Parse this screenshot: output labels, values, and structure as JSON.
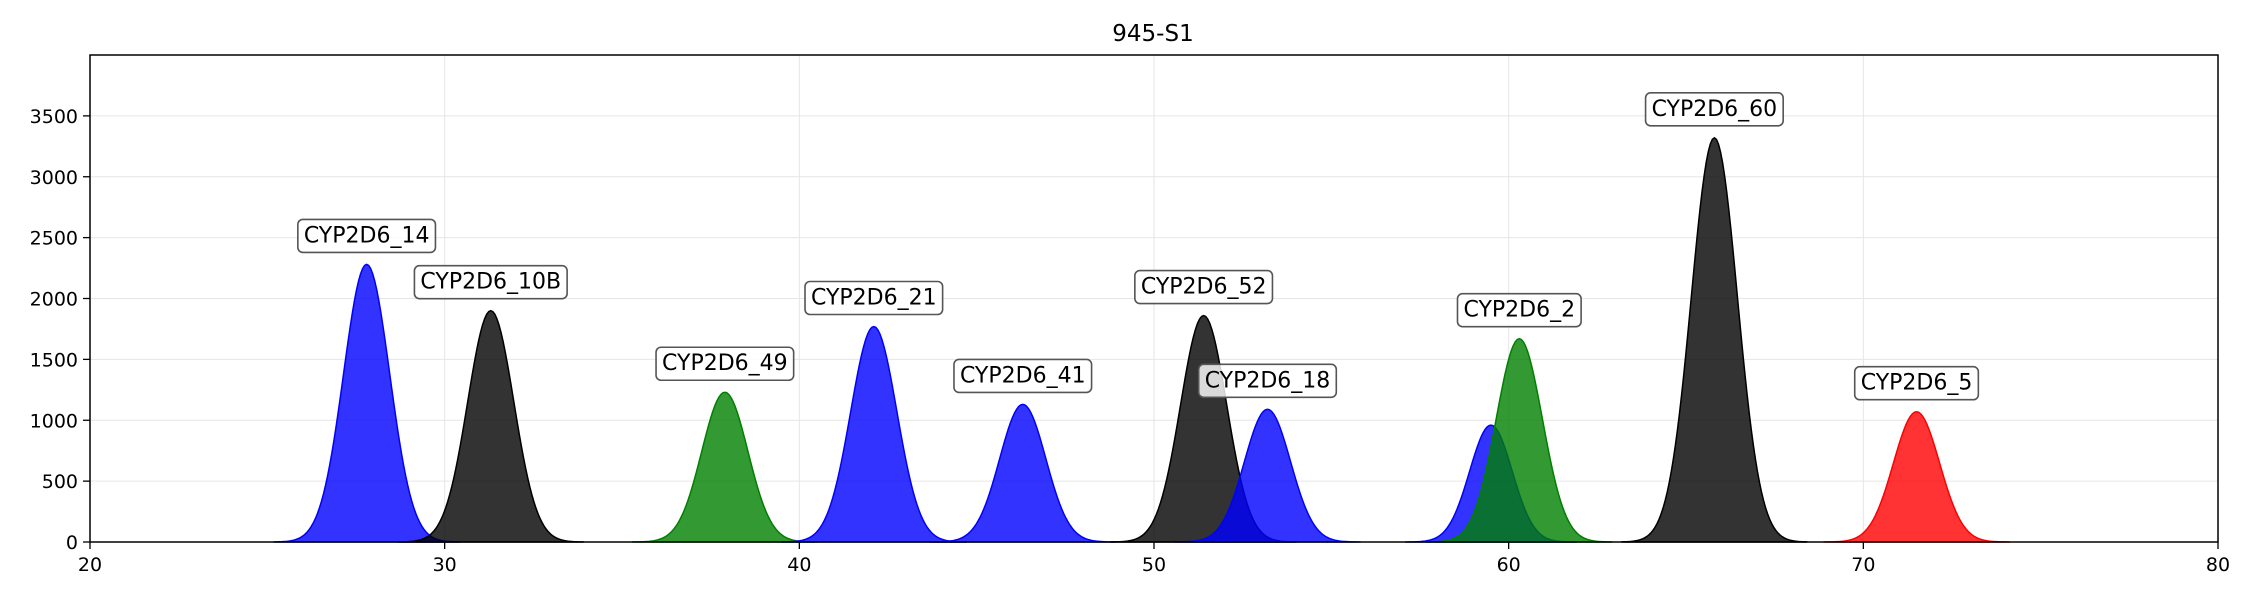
{
  "chart_data": {
    "type": "area",
    "title": "945-S1",
    "xlabel": "",
    "ylabel": "",
    "xlim": [
      20,
      80
    ],
    "ylim": [
      0,
      4000
    ],
    "xticks": [
      20,
      30,
      40,
      50,
      60,
      70,
      80
    ],
    "yticks": [
      0,
      500,
      1000,
      1500,
      2000,
      2500,
      3000,
      3500
    ],
    "grid": true,
    "colors": {
      "blue": "#0000ff",
      "black": "#000000",
      "green": "#008000",
      "red": "#ff0000"
    },
    "series": [
      {
        "label": "CYP2D6_14",
        "center": 27.8,
        "height": 2280,
        "sigma": 0.65,
        "color": "blue",
        "show_label": true
      },
      {
        "label": "CYP2D6_10B",
        "center": 31.3,
        "height": 1900,
        "sigma": 0.65,
        "color": "black",
        "show_label": true
      },
      {
        "label": "CYP2D6_49",
        "center": 37.9,
        "height": 1230,
        "sigma": 0.65,
        "color": "green",
        "show_label": true
      },
      {
        "label": "CYP2D6_21",
        "center": 42.1,
        "height": 1770,
        "sigma": 0.65,
        "color": "blue",
        "show_label": true
      },
      {
        "label": "CYP2D6_41",
        "center": 46.3,
        "height": 1130,
        "sigma": 0.65,
        "color": "blue",
        "show_label": true
      },
      {
        "label": "CYP2D6_52",
        "center": 51.4,
        "height": 1860,
        "sigma": 0.65,
        "color": "black",
        "show_label": true
      },
      {
        "label": "CYP2D6_18",
        "center": 53.2,
        "height": 1090,
        "sigma": 0.65,
        "color": "blue",
        "show_label": true
      },
      {
        "label": "",
        "center": 59.5,
        "height": 960,
        "sigma": 0.6,
        "color": "blue",
        "show_label": false
      },
      {
        "label": "CYP2D6_2",
        "center": 60.3,
        "height": 1670,
        "sigma": 0.65,
        "color": "green",
        "show_label": true
      },
      {
        "label": "CYP2D6_60",
        "center": 65.8,
        "height": 3320,
        "sigma": 0.65,
        "color": "black",
        "show_label": true
      },
      {
        "label": "CYP2D6_5",
        "center": 71.5,
        "height": 1070,
        "sigma": 0.65,
        "color": "red",
        "show_label": true
      }
    ]
  }
}
